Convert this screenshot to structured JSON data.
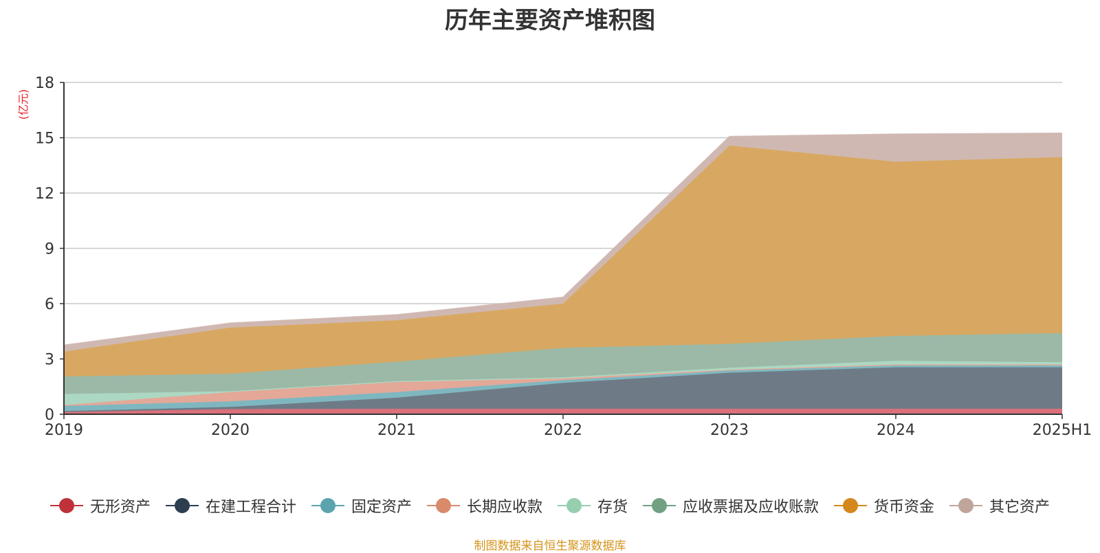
{
  "chart_data": {
    "type": "area",
    "title": "历年主要资产堆积图",
    "ylabel": "(亿元)",
    "ylim": [
      0,
      18
    ],
    "yticks": [
      0,
      3,
      6,
      9,
      12,
      15,
      18
    ],
    "grid": true,
    "legend_position": "bottom",
    "stacked": true,
    "categories": [
      "2019",
      "2020",
      "2021",
      "2022",
      "2023",
      "2024",
      "2025H1"
    ],
    "series": [
      {
        "name": "无形资产",
        "color": "#c0323a",
        "fill": "#d9707a",
        "values": [
          0.12,
          0.28,
          0.3,
          0.3,
          0.3,
          0.3,
          0.3
        ]
      },
      {
        "name": "在建工程合计",
        "color": "#2c3e50",
        "fill": "#6e7b86",
        "values": [
          0.05,
          0.12,
          0.6,
          1.4,
          1.95,
          2.25,
          2.25
        ]
      },
      {
        "name": "固定资产",
        "color": "#5ba4ad",
        "fill": "#7fb7c0",
        "values": [
          0.28,
          0.3,
          0.3,
          0.15,
          0.12,
          0.1,
          0.1
        ]
      },
      {
        "name": "长期应收款",
        "color": "#d98a6a",
        "fill": "#e3a898",
        "values": [
          0.05,
          0.5,
          0.55,
          0.1,
          0.05,
          0.05,
          0.05
        ]
      },
      {
        "name": "存货",
        "color": "#95cfb0",
        "fill": "#acd8c3",
        "values": [
          0.6,
          0.05,
          0.05,
          0.05,
          0.1,
          0.2,
          0.12
        ]
      },
      {
        "name": "应收票据及应收账款",
        "color": "#72a083",
        "fill": "#9bb9a6",
        "values": [
          0.95,
          0.95,
          1.05,
          1.6,
          1.3,
          1.35,
          1.58
        ]
      },
      {
        "name": "货币资金",
        "color": "#d4881e",
        "fill": "#d8a862",
        "values": [
          1.35,
          2.5,
          2.25,
          2.4,
          10.75,
          9.45,
          9.55
        ]
      },
      {
        "name": "其它资产",
        "color": "#c0a59b",
        "fill": "#d0b8b2",
        "values": [
          0.35,
          0.25,
          0.3,
          0.35,
          0.5,
          1.5,
          1.3
        ]
      }
    ]
  },
  "footer": {
    "source": "制图数据来自恒生聚源数据库"
  }
}
